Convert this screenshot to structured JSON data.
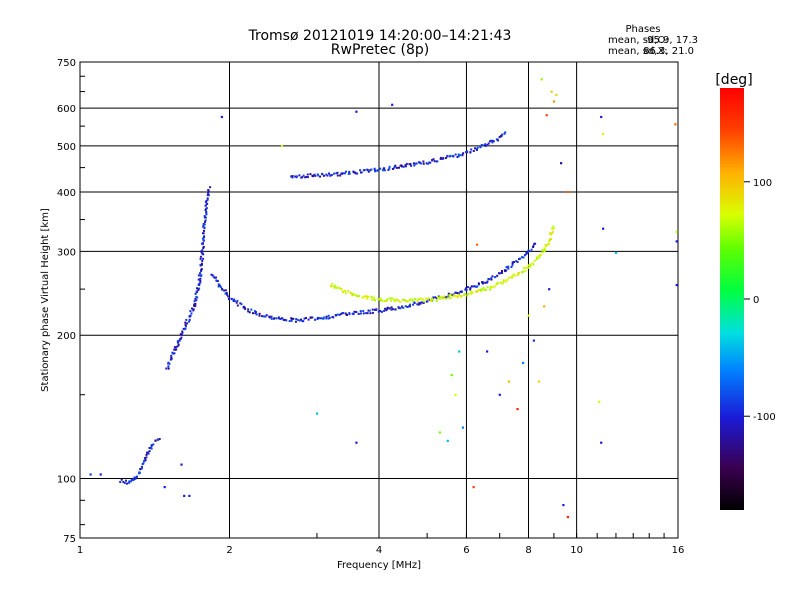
{
  "chart_data": {
    "type": "scatter",
    "title": "Tromsø 20121019 14:20:00–14:21:43",
    "subtitle": "RwPretec (8p)",
    "xlabel": "Frequency [MHz]",
    "ylabel": "Stationary phase Virtual Height [km]",
    "x_scale": "log",
    "y_scale": "log",
    "xlim": [
      1,
      16
    ],
    "ylim": [
      75,
      750
    ],
    "x_ticks": [
      1,
      2,
      4,
      6,
      8,
      10,
      16
    ],
    "y_ticks": [
      75,
      100,
      200,
      300,
      400,
      500,
      600,
      750
    ],
    "x_tick_labels": [
      "1",
      "2",
      "4",
      "6",
      "8",
      "10",
      "16"
    ],
    "y_tick_labels": [
      "75",
      "100",
      "200",
      "300",
      "400",
      "500",
      "600",
      "750"
    ],
    "grid": true,
    "phase_stats": {
      "heading": "Phases",
      "o_label": "mean, sd,O:",
      "o_values": "-95.9, 17.3",
      "x_label": "mean, sd,X:",
      "x_values": "86.3, 21.0"
    },
    "colorbar": {
      "label": "[deg]",
      "range": [
        -180,
        180
      ],
      "ticks": [
        100,
        0,
        -100
      ],
      "tick_labels": [
        "100",
        "0",
        "-100"
      ]
    },
    "series": [
      {
        "mode": "O",
        "phase_deg": -100,
        "segments": [
          {
            "x": [
              1.85,
              1.9,
              1.95,
              2.0,
              2.1,
              2.2,
              2.35,
              2.5,
              2.7,
              2.9,
              3.1,
              3.3,
              3.5,
              3.8,
              4.1,
              4.4,
              4.7,
              5.0,
              5.3,
              5.6,
              5.9,
              6.2,
              6.5,
              6.8,
              7.1,
              7.4,
              7.7,
              8.0,
              8.3
            ],
            "y": [
              270,
              255,
              248,
              240,
              232,
              225,
              220,
              217,
              215,
              216,
              218,
              220,
              222,
              224,
              226,
              229,
              232,
              236,
              240,
              244,
              248,
              253,
              258,
              265,
              272,
              280,
              290,
              300,
              312
            ]
          },
          {
            "x": [
              1.5,
              1.55,
              1.6,
              1.65,
              1.7,
              1.72,
              1.74,
              1.76,
              1.78,
              1.8,
              1.82
            ],
            "y": [
              170,
              185,
              200,
              215,
              230,
              245,
              260,
              290,
              340,
              380,
              410
            ]
          },
          {
            "x": [
              2.65,
              2.8,
              3.0,
              3.2,
              3.4,
              3.6,
              3.8,
              4.0,
              4.3,
              4.6,
              5.0,
              5.4,
              5.8,
              6.2,
              6.6,
              7.0,
              7.2
            ],
            "y": [
              432,
              432,
              433,
              435,
              437,
              440,
              443,
              446,
              450,
              455,
              462,
              470,
              478,
              490,
              505,
              520,
              535
            ]
          },
          {
            "x": [
              1.2,
              1.25,
              1.3,
              1.35,
              1.4,
              1.45
            ],
            "y": [
              99,
              98,
              100,
              110,
              118,
              122
            ]
          }
        ]
      },
      {
        "mode": "X",
        "phase_deg": 86,
        "segments": [
          {
            "x": [
              3.2,
              3.4,
              3.6,
              3.8,
              4.0,
              4.3,
              4.6,
              4.9,
              5.2,
              5.6,
              6.0,
              6.4,
              6.8,
              7.2,
              7.6,
              8.0,
              8.4,
              8.8,
              9.0
            ],
            "y": [
              255,
              248,
              243,
              240,
              238,
              237,
              236,
              237,
              238,
              241,
              244,
              248,
              253,
              260,
              268,
              278,
              292,
              315,
              340
            ]
          }
        ]
      }
    ],
    "scattered_points": [
      {
        "x": 1.05,
        "y": 102,
        "phase": -90
      },
      {
        "x": 1.1,
        "y": 102,
        "phase": -100
      },
      {
        "x": 1.48,
        "y": 96,
        "phase": -100
      },
      {
        "x": 1.62,
        "y": 92,
        "phase": -100
      },
      {
        "x": 1.66,
        "y": 92,
        "phase": -100
      },
      {
        "x": 1.6,
        "y": 107,
        "phase": -100
      },
      {
        "x": 1.93,
        "y": 575,
        "phase": -100
      },
      {
        "x": 2.55,
        "y": 500,
        "phase": 90
      },
      {
        "x": 3.6,
        "y": 590,
        "phase": -100
      },
      {
        "x": 4.25,
        "y": 610,
        "phase": -100
      },
      {
        "x": 3.6,
        "y": 119,
        "phase": -100
      },
      {
        "x": 3.0,
        "y": 137,
        "phase": -40
      },
      {
        "x": 5.6,
        "y": 165,
        "phase": 40
      },
      {
        "x": 5.8,
        "y": 185,
        "phase": -40
      },
      {
        "x": 5.7,
        "y": 150,
        "phase": 90
      },
      {
        "x": 5.5,
        "y": 120,
        "phase": -40
      },
      {
        "x": 5.3,
        "y": 125,
        "phase": 50
      },
      {
        "x": 5.9,
        "y": 128,
        "phase": -60
      },
      {
        "x": 6.2,
        "y": 96,
        "phase": 160
      },
      {
        "x": 6.3,
        "y": 310,
        "phase": 150
      },
      {
        "x": 6.6,
        "y": 185,
        "phase": -100
      },
      {
        "x": 7.0,
        "y": 150,
        "phase": -100
      },
      {
        "x": 7.3,
        "y": 160,
        "phase": 130
      },
      {
        "x": 7.6,
        "y": 140,
        "phase": 170
      },
      {
        "x": 7.8,
        "y": 175,
        "phase": -60
      },
      {
        "x": 8.0,
        "y": 220,
        "phase": 90
      },
      {
        "x": 8.2,
        "y": 195,
        "phase": -90
      },
      {
        "x": 8.4,
        "y": 160,
        "phase": 110
      },
      {
        "x": 8.6,
        "y": 230,
        "phase": 130
      },
      {
        "x": 8.8,
        "y": 250,
        "phase": -100
      },
      {
        "x": 8.5,
        "y": 690,
        "phase": 60
      },
      {
        "x": 8.9,
        "y": 650,
        "phase": 120
      },
      {
        "x": 9.1,
        "y": 640,
        "phase": 110
      },
      {
        "x": 9.0,
        "y": 620,
        "phase": 140
      },
      {
        "x": 8.7,
        "y": 580,
        "phase": 160
      },
      {
        "x": 9.3,
        "y": 460,
        "phase": -120
      },
      {
        "x": 9.6,
        "y": 400,
        "phase": 150
      },
      {
        "x": 9.4,
        "y": 88,
        "phase": -100
      },
      {
        "x": 9.6,
        "y": 83,
        "phase": 170
      },
      {
        "x": 11.2,
        "y": 575,
        "phase": -100
      },
      {
        "x": 11.3,
        "y": 530,
        "phase": 90
      },
      {
        "x": 11.3,
        "y": 335,
        "phase": -100
      },
      {
        "x": 12.0,
        "y": 298,
        "phase": -40
      },
      {
        "x": 11.1,
        "y": 145,
        "phase": 90
      },
      {
        "x": 11.2,
        "y": 119,
        "phase": -100
      },
      {
        "x": 15.8,
        "y": 555,
        "phase": 150
      },
      {
        "x": 15.9,
        "y": 330,
        "phase": 70
      },
      {
        "x": 15.9,
        "y": 315,
        "phase": -100
      },
      {
        "x": 15.9,
        "y": 255,
        "phase": -100
      }
    ]
  }
}
